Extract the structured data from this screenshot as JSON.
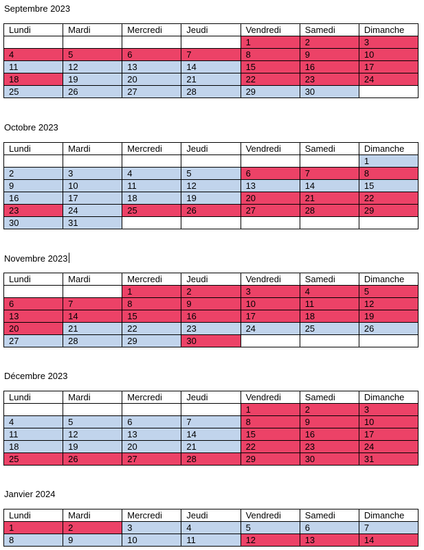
{
  "days": [
    "Lundi",
    "Mardi",
    "Mercredi",
    "Jeudi",
    "Vendredi",
    "Samedi",
    "Dimanche"
  ],
  "colors": {
    "blue": "#c1d4ec",
    "red": "#ec4267",
    "white": "#ffffff"
  },
  "months": [
    {
      "title": "Septembre 2023",
      "rows": [
        [
          [
            "",
            "w"
          ],
          [
            "",
            "w"
          ],
          [
            "",
            "w"
          ],
          [
            "",
            "w"
          ],
          [
            "1",
            "r"
          ],
          [
            "2",
            "r"
          ],
          [
            "3",
            "r"
          ]
        ],
        [
          [
            "4",
            "r"
          ],
          [
            "5",
            "r"
          ],
          [
            "6",
            "r"
          ],
          [
            "7",
            "r"
          ],
          [
            "8",
            "r"
          ],
          [
            "9",
            "r"
          ],
          [
            "10",
            "r"
          ]
        ],
        [
          [
            "11",
            "b"
          ],
          [
            "12",
            "b"
          ],
          [
            "13",
            "b"
          ],
          [
            "14",
            "b"
          ],
          [
            "15",
            "r"
          ],
          [
            "16",
            "r"
          ],
          [
            "17",
            "r"
          ]
        ],
        [
          [
            "18",
            "r"
          ],
          [
            "19",
            "b"
          ],
          [
            "20",
            "b"
          ],
          [
            "21",
            "b"
          ],
          [
            "22",
            "r"
          ],
          [
            "23",
            "r"
          ],
          [
            "24",
            "r"
          ]
        ],
        [
          [
            "25",
            "b"
          ],
          [
            "26",
            "b"
          ],
          [
            "27",
            "b"
          ],
          [
            "28",
            "b"
          ],
          [
            "29",
            "b"
          ],
          [
            "30",
            "b"
          ],
          [
            "",
            "w"
          ]
        ]
      ]
    },
    {
      "title": "Octobre 2023",
      "rows": [
        [
          [
            "",
            "w"
          ],
          [
            "",
            "w"
          ],
          [
            "",
            "w"
          ],
          [
            "",
            "w"
          ],
          [
            "",
            "w"
          ],
          [
            "",
            "w"
          ],
          [
            "1",
            "b"
          ]
        ],
        [
          [
            "2",
            "b"
          ],
          [
            "3",
            "b"
          ],
          [
            "4",
            "b"
          ],
          [
            "5",
            "b"
          ],
          [
            "6",
            "r"
          ],
          [
            "7",
            "r"
          ],
          [
            "8",
            "r"
          ]
        ],
        [
          [
            "9",
            "b"
          ],
          [
            "10",
            "b"
          ],
          [
            "11",
            "b"
          ],
          [
            "12",
            "b"
          ],
          [
            "13",
            "b"
          ],
          [
            "14",
            "b"
          ],
          [
            "15",
            "b"
          ]
        ],
        [
          [
            "16",
            "b"
          ],
          [
            "17",
            "b"
          ],
          [
            "18",
            "b"
          ],
          [
            "19",
            "b"
          ],
          [
            "20",
            "r"
          ],
          [
            "21",
            "r"
          ],
          [
            "22",
            "r"
          ]
        ],
        [
          [
            "23",
            "r"
          ],
          [
            "24",
            "b"
          ],
          [
            "25",
            "r"
          ],
          [
            "26",
            "r"
          ],
          [
            "27",
            "r"
          ],
          [
            "28",
            "r"
          ],
          [
            "29",
            "r"
          ]
        ],
        [
          [
            "30",
            "b"
          ],
          [
            "31",
            "b"
          ],
          [
            "",
            "w"
          ],
          [
            "",
            "w"
          ],
          [
            "",
            "w"
          ],
          [
            "",
            "w"
          ],
          [
            "",
            "w"
          ]
        ]
      ]
    },
    {
      "title": "Novembre 2023",
      "rows": [
        [
          [
            "",
            "w"
          ],
          [
            "",
            "w"
          ],
          [
            "1",
            "r"
          ],
          [
            "2",
            "r"
          ],
          [
            "3",
            "r"
          ],
          [
            "4",
            "r"
          ],
          [
            "5",
            "r"
          ]
        ],
        [
          [
            "6",
            "r"
          ],
          [
            "7",
            "r"
          ],
          [
            "8",
            "r"
          ],
          [
            "9",
            "r"
          ],
          [
            "10",
            "r"
          ],
          [
            "11",
            "r"
          ],
          [
            "12",
            "r"
          ]
        ],
        [
          [
            "13",
            "r"
          ],
          [
            "14",
            "r"
          ],
          [
            "15",
            "r"
          ],
          [
            "16",
            "r"
          ],
          [
            "17",
            "r"
          ],
          [
            "18",
            "r"
          ],
          [
            "19",
            "r"
          ]
        ],
        [
          [
            "20",
            "r"
          ],
          [
            "21",
            "b"
          ],
          [
            "22",
            "b"
          ],
          [
            "23",
            "b"
          ],
          [
            "24",
            "b"
          ],
          [
            "25",
            "b"
          ],
          [
            "26",
            "b"
          ]
        ],
        [
          [
            "27",
            "b"
          ],
          [
            "28",
            "b"
          ],
          [
            "29",
            "b"
          ],
          [
            "30",
            "r"
          ],
          [
            "",
            "w"
          ],
          [
            "",
            "w"
          ],
          [
            "",
            "w"
          ]
        ]
      ]
    },
    {
      "title": "Décembre 2023",
      "rows": [
        [
          [
            "",
            "w"
          ],
          [
            "",
            "w"
          ],
          [
            "",
            "w"
          ],
          [
            "",
            "w"
          ],
          [
            "1",
            "r"
          ],
          [
            "2",
            "r"
          ],
          [
            "3",
            "r"
          ]
        ],
        [
          [
            "4",
            "b"
          ],
          [
            "5",
            "b"
          ],
          [
            "6",
            "b"
          ],
          [
            "7",
            "b"
          ],
          [
            "8",
            "r"
          ],
          [
            "9",
            "r"
          ],
          [
            "10",
            "r"
          ]
        ],
        [
          [
            "11",
            "b"
          ],
          [
            "12",
            "b"
          ],
          [
            "13",
            "b"
          ],
          [
            "14",
            "b"
          ],
          [
            "15",
            "r"
          ],
          [
            "16",
            "r"
          ],
          [
            "17",
            "r"
          ]
        ],
        [
          [
            "18",
            "b"
          ],
          [
            "19",
            "b"
          ],
          [
            "20",
            "b"
          ],
          [
            "21",
            "b"
          ],
          [
            "22",
            "r"
          ],
          [
            "23",
            "r"
          ],
          [
            "24",
            "r"
          ]
        ],
        [
          [
            "25",
            "r"
          ],
          [
            "26",
            "r"
          ],
          [
            "27",
            "r"
          ],
          [
            "28",
            "r"
          ],
          [
            "29",
            "r"
          ],
          [
            "30",
            "r"
          ],
          [
            "31",
            "r"
          ]
        ]
      ]
    },
    {
      "title": "Janvier 2024",
      "rows": [
        [
          [
            "1",
            "r"
          ],
          [
            "2",
            "r"
          ],
          [
            "3",
            "b"
          ],
          [
            "4",
            "b"
          ],
          [
            "5",
            "b"
          ],
          [
            "6",
            "b"
          ],
          [
            "7",
            "b"
          ]
        ],
        [
          [
            "8",
            "b"
          ],
          [
            "9",
            "b"
          ],
          [
            "10",
            "b"
          ],
          [
            "11",
            "b"
          ],
          [
            "12",
            "r"
          ],
          [
            "13",
            "r"
          ],
          [
            "14",
            "r"
          ]
        ]
      ]
    }
  ]
}
